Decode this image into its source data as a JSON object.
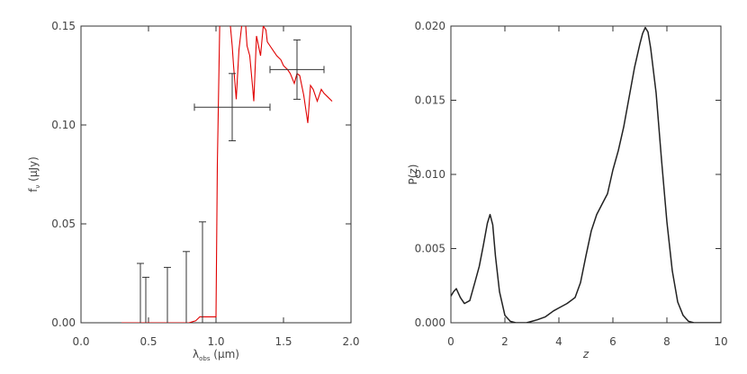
{
  "chart_data": [
    {
      "type": "line",
      "xlabel": "λobs (μm)",
      "ylabel": "fν (μJy)",
      "xlim": [
        0.0,
        2.0
      ],
      "ylim": [
        0.0,
        0.15
      ],
      "x_ticks": [
        0.0,
        0.5,
        1.0,
        1.5,
        2.0
      ],
      "x_tick_labels": [
        "0.0",
        "0.5",
        "1.0",
        "1.5",
        "2.0"
      ],
      "y_ticks": [
        0.0,
        0.05,
        0.1,
        0.15
      ],
      "y_tick_labels": [
        "0.00",
        "0.05",
        "0.10",
        "0.15"
      ],
      "grid": false,
      "colors": {
        "model": "#e00000",
        "points": "#333333"
      },
      "series": [
        {
          "kind": "model-spectrum",
          "x": [
            0.3,
            0.5,
            0.8,
            0.85,
            0.88,
            0.9,
            0.95,
            0.99,
            1.0,
            1.01,
            1.03,
            1.05,
            1.08,
            1.1,
            1.12,
            1.13,
            1.15,
            1.17,
            1.19,
            1.21,
            1.23,
            1.25,
            1.27,
            1.28,
            1.3,
            1.33,
            1.35,
            1.37,
            1.38,
            1.4,
            1.42,
            1.45,
            1.48,
            1.5,
            1.53,
            1.55,
            1.58,
            1.6,
            1.62,
            1.65,
            1.68,
            1.7,
            1.72,
            1.75,
            1.78,
            1.8,
            1.83,
            1.86
          ],
          "y": [
            0.0,
            0.0,
            0.0,
            0.001,
            0.003,
            0.003,
            0.003,
            0.003,
            0.003,
            0.08,
            0.16,
            0.2,
            0.19,
            0.155,
            0.14,
            0.13,
            0.113,
            0.138,
            0.15,
            0.16,
            0.14,
            0.135,
            0.12,
            0.112,
            0.145,
            0.135,
            0.15,
            0.148,
            0.142,
            0.14,
            0.138,
            0.135,
            0.133,
            0.13,
            0.128,
            0.126,
            0.121,
            0.126,
            0.125,
            0.115,
            0.101,
            0.12,
            0.118,
            0.112,
            0.118,
            0.116,
            0.114,
            0.112
          ]
        },
        {
          "kind": "upper-limits",
          "x": [
            0.44,
            0.48,
            0.64,
            0.78,
            0.9
          ],
          "y": [
            0.0,
            0.0,
            0.0,
            0.0,
            0.0
          ],
          "yerr_upper": [
            0.03,
            0.023,
            0.028,
            0.036,
            0.051
          ]
        },
        {
          "kind": "detections",
          "x": [
            1.12,
            1.6
          ],
          "y": [
            0.109,
            0.128
          ],
          "xerr": [
            0.28,
            0.2
          ],
          "yerr": [
            0.017,
            0.015
          ]
        }
      ]
    },
    {
      "type": "line",
      "xlabel": "z",
      "ylabel": "P(z)",
      "xlim": [
        0,
        10
      ],
      "ylim": [
        0.0,
        0.02
      ],
      "x_ticks": [
        0,
        2,
        4,
        6,
        8,
        10
      ],
      "x_tick_labels": [
        "0",
        "2",
        "4",
        "6",
        "8",
        "10"
      ],
      "y_ticks": [
        0.0,
        0.005,
        0.01,
        0.015,
        0.02
      ],
      "y_tick_labels": [
        "0.000",
        "0.005",
        "0.010",
        "0.015",
        "0.020"
      ],
      "grid": false,
      "colors": {
        "line": "#222222"
      },
      "series": [
        {
          "x": [
            0.0,
            0.1,
            0.2,
            0.35,
            0.5,
            0.7,
            0.9,
            1.05,
            1.2,
            1.35,
            1.45,
            1.55,
            1.65,
            1.8,
            2.0,
            2.2,
            2.4,
            2.6,
            2.8,
            3.0,
            3.2,
            3.5,
            3.8,
            4.0,
            4.3,
            4.6,
            4.8,
            5.0,
            5.2,
            5.4,
            5.6,
            5.8,
            6.0,
            6.2,
            6.4,
            6.6,
            6.8,
            7.0,
            7.1,
            7.2,
            7.3,
            7.4,
            7.6,
            7.8,
            8.0,
            8.2,
            8.4,
            8.6,
            8.8,
            9.0,
            9.3,
            9.6,
            10.0
          ],
          "y": [
            0.0018,
            0.0021,
            0.0023,
            0.0017,
            0.0013,
            0.0015,
            0.0028,
            0.0038,
            0.0052,
            0.0067,
            0.0073,
            0.0066,
            0.0045,
            0.0021,
            0.0005,
            0.0001,
            0.0,
            0.0,
            0.0,
            0.0001,
            0.0002,
            0.0004,
            0.0008,
            0.001,
            0.0013,
            0.0017,
            0.0027,
            0.0045,
            0.0062,
            0.0073,
            0.008,
            0.0087,
            0.0103,
            0.0116,
            0.0132,
            0.0152,
            0.0172,
            0.0188,
            0.0195,
            0.0199,
            0.0196,
            0.0185,
            0.0155,
            0.011,
            0.0068,
            0.0035,
            0.0014,
            0.0005,
            0.0001,
            0.0,
            0.0,
            0.0,
            0.0
          ]
        }
      ]
    }
  ]
}
